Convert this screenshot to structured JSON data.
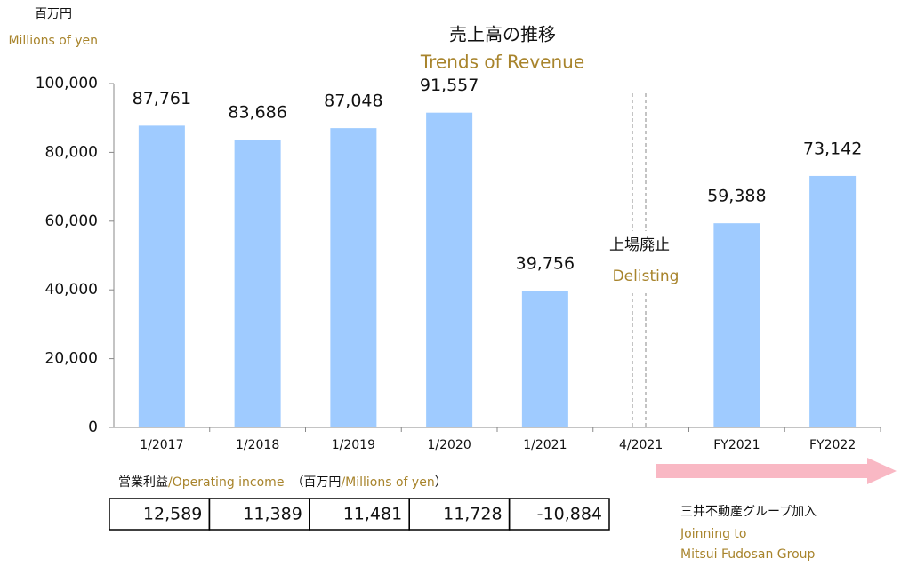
{
  "chart_data": {
    "type": "bar",
    "title": "売上高の推移",
    "subtitle": "Trends of Revenue",
    "y_unit": "百万円",
    "y_unit_en": "Millions of yen",
    "categories": [
      "1/2017",
      "1/2018",
      "1/2019",
      "1/2020",
      "1/2021",
      "4/2021",
      "FY2021",
      "FY2022"
    ],
    "values": [
      87761,
      83686,
      87048,
      91557,
      39756,
      null,
      59388,
      73142
    ],
    "value_labels": [
      "87,761",
      "83,686",
      "87,048",
      "91,557",
      "39,756",
      null,
      "59,388",
      "73,142"
    ],
    "color": "#9fcbff",
    "ylim": [
      0,
      100000
    ],
    "yticks": [
      0,
      {
        "value": 20000,
        "label": "20,000"
      },
      {
        "value": 40000,
        "label": "40,000"
      },
      {
        "value": 60000,
        "label": "60,000"
      },
      {
        "value": 80000,
        "label": "80,000"
      },
      {
        "value": 100000,
        "label": "100,000"
      }
    ],
    "annotation": "上場廃止",
    "annotation_en": "Delisting"
  },
  "operating_income": {
    "label": "営業利益",
    "label_en": "/Operating income",
    "unit": "（百万円",
    "unit_en": "/Millions of yen",
    "unit_close": "）",
    "cells": [
      "12,589",
      "11,389",
      "11,481",
      "11,728",
      "-10,884"
    ]
  },
  "note": {
    "text": "三井不動産グループ加入",
    "text_en_1": "Joinning to",
    "text_en_2": "Mitsui Fudosan Group"
  }
}
